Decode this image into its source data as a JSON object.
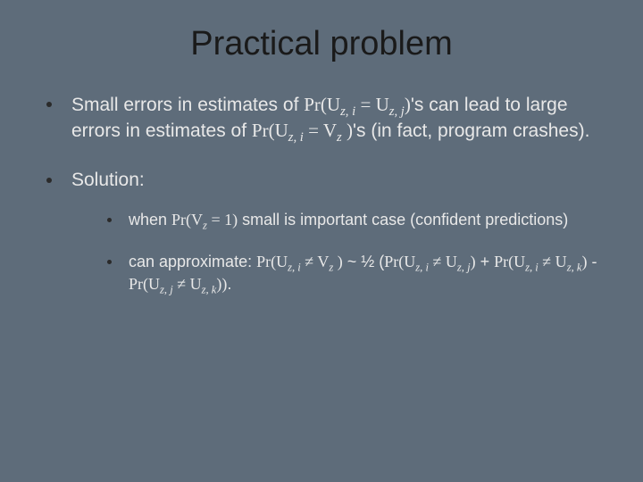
{
  "background_color": "#5e6c7a",
  "text_color": "#e8e8e8",
  "title_color": "#1a1a1a",
  "bullet_color": "#2a2a2a",
  "title_fontsize": 38,
  "body_fontsize": 21,
  "sub_fontsize": 18,
  "slide": {
    "title": "Practical problem",
    "bullets": [
      {
        "pre": "Small errors in estimates of ",
        "math1": "Pr(U",
        "sub1": "z, i",
        "mid1": " = U",
        "sub2": "z, j",
        "close1": ")",
        "post1": "'s can lead to large errors in estimates of ",
        "math2": "Pr(U",
        "sub3": "z, i",
        "mid2": " = V",
        "sub4": "z",
        "close2": " )",
        "post2": "'s (in fact, program crashes)."
      },
      {
        "text": "Solution:",
        "sub": [
          {
            "pre": "when ",
            "math": "Pr(V",
            "sub1": "z",
            "mid": " = 1)",
            "post": " small is important case (confident predictions)"
          },
          {
            "pre": "can approximate:  ",
            "m1": "Pr(U",
            "s1": "z, i",
            "m1b": " ≠ V",
            "s1b": "z",
            "m1c": " )",
            "tilde": " ~ ½ (",
            "m2": "Pr(U",
            "s2": "z, i",
            "m2b": " ≠ U",
            "s2b": "z, j",
            "m2c": ")",
            "plus": " + ",
            "m3": "Pr(U",
            "s3": "z, i",
            "m3b": " ≠ U",
            "s3b": "z, k",
            "m3c": ")",
            "minus": " - ",
            "m4": "Pr(U",
            "s4": "z, j",
            "m4b": " ≠ U",
            "s4b": "z, k",
            "m4c": "))",
            "end": "."
          }
        ]
      }
    ]
  }
}
